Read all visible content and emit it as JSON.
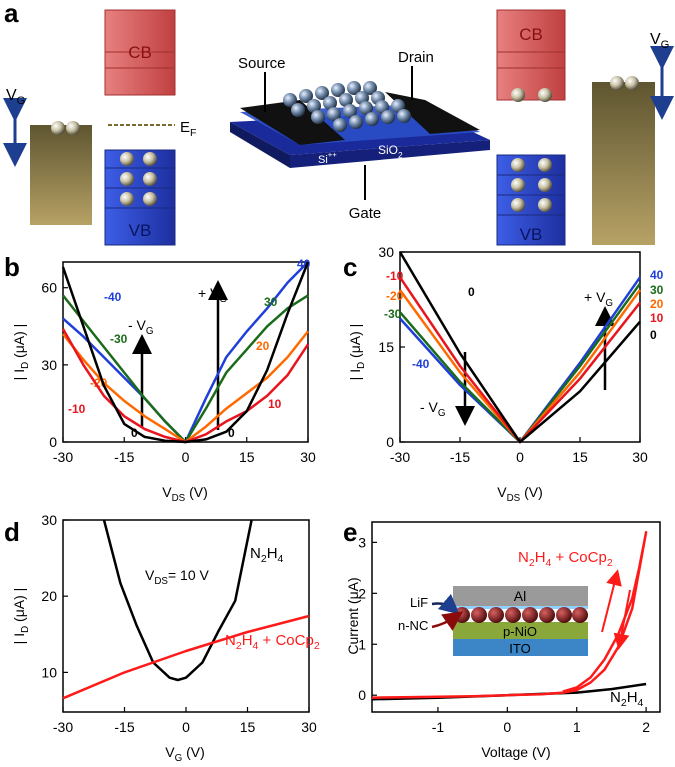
{
  "figure": {
    "panel_a": {
      "label": "a",
      "cb_left": "CB",
      "vb_left": "VB",
      "vg_left": [
        "V",
        "G"
      ],
      "ef": [
        "E",
        "F"
      ],
      "source": "Source",
      "drain": "Drain",
      "si": [
        "Si",
        "++"
      ],
      "sio2": [
        "SiO",
        "2"
      ],
      "gate": "Gate",
      "cb_right": "CB",
      "vb_right": "VB",
      "vg_right": [
        "V",
        "G"
      ]
    }
  },
  "chart_data": [
    {
      "type": "line",
      "panel": "b",
      "xlabel": [
        "V",
        "DS",
        " (V)"
      ],
      "ylabel": [
        "| I",
        "D",
        " (μA) |"
      ],
      "x": [
        -30,
        -25,
        -20,
        -15,
        -10,
        -5,
        0,
        5,
        10,
        15,
        20,
        25,
        30
      ],
      "xlim": [
        -30,
        30
      ],
      "ylim": [
        0,
        70
      ],
      "xticks": [
        -30,
        -15,
        0,
        15,
        30
      ],
      "yticks": [
        0,
        30,
        60
      ],
      "series": [
        {
          "name": "40",
          "left_name": "-40",
          "color": "#1f3fd8",
          "values": [
            48,
            41,
            33,
            25,
            17,
            8,
            0,
            17,
            33,
            43,
            52,
            62,
            70
          ]
        },
        {
          "name": "30",
          "left_name": "-30",
          "color": "#1a6b1a",
          "values": [
            57,
            47,
            37,
            27,
            17,
            8,
            0,
            13,
            27,
            36,
            45,
            52,
            57
          ]
        },
        {
          "name": "20",
          "left_name": "-20",
          "color": "#ff6a00",
          "values": [
            42,
            32,
            23,
            16,
            10,
            5,
            0,
            6,
            13,
            19,
            25,
            33,
            43
          ]
        },
        {
          "name": "10",
          "left_name": "-10",
          "color": "#e8141e",
          "values": [
            44,
            30,
            18,
            10,
            5,
            2,
            0,
            3,
            8,
            12,
            18,
            26,
            38
          ]
        },
        {
          "name": "0",
          "left_name": "0",
          "color": "#000000",
          "values": [
            68,
            45,
            22,
            7,
            2,
            0.5,
            0,
            1,
            4,
            12,
            28,
            50,
            70
          ]
        }
      ],
      "annotations": [
        [
          "+ V",
          "G"
        ],
        [
          "- V",
          "G"
        ]
      ]
    },
    {
      "type": "line",
      "panel": "c",
      "xlabel": [
        "V",
        "DS",
        " (V)"
      ],
      "ylabel": [
        "| I",
        "D",
        " (μA) |"
      ],
      "x": [
        -30,
        -15,
        0,
        15,
        30
      ],
      "xlim": [
        -30,
        30
      ],
      "ylim": [
        0,
        30
      ],
      "xticks": [
        -30,
        -15,
        0,
        15,
        30
      ],
      "yticks": [
        0,
        15,
        30
      ],
      "series": [
        {
          "name": "40",
          "left_name": "-40",
          "color": "#1f3fd8",
          "values": [
            19.5,
            9,
            0,
            12.5,
            26
          ]
        },
        {
          "name": "30",
          "left_name": "-30",
          "color": "#1a6b1a",
          "values": [
            20.5,
            9.5,
            0,
            12,
            25
          ]
        },
        {
          "name": "20",
          "left_name": "-20",
          "color": "#ff6a00",
          "values": [
            24,
            11,
            0,
            11,
            24
          ]
        },
        {
          "name": "10",
          "left_name": "-10",
          "color": "#e8141e",
          "values": [
            26,
            12,
            0,
            10,
            22
          ]
        },
        {
          "name": "0",
          "left_name": "0",
          "color": "#000000",
          "values": [
            30,
            14,
            0,
            8,
            19
          ]
        }
      ],
      "annotations": [
        [
          "+ V",
          "G"
        ],
        [
          "- V",
          "G"
        ]
      ]
    },
    {
      "type": "line",
      "panel": "d",
      "xlabel": [
        "V",
        "G",
        " (V)"
      ],
      "ylabel": [
        "| I",
        "D",
        " (μA) |"
      ],
      "xlim": [
        -30,
        30
      ],
      "ylim": [
        4.8,
        30
      ],
      "xticks": [
        -30,
        -15,
        0,
        15,
        30
      ],
      "yticks": [
        10,
        20,
        30
      ],
      "series": [
        {
          "name": [
            "N",
            "2",
            "H",
            "4"
          ],
          "color": "#000000",
          "x": [
            -20,
            -16,
            -12,
            -8,
            -4,
            -2,
            0,
            4,
            8,
            12,
            16
          ],
          "values": [
            30,
            21.7,
            16.1,
            11.3,
            9.3,
            9,
            9.3,
            11.3,
            15.5,
            19.4,
            30
          ]
        },
        {
          "name": [
            "N",
            "2",
            "H",
            "4",
            " + CoCp",
            "2"
          ],
          "color": "#ff1a1a",
          "x": [
            -30,
            -15,
            0,
            15,
            30
          ],
          "values": [
            6.6,
            10,
            12.8,
            15.3,
            17.4
          ]
        }
      ],
      "annotations": [
        [
          "V",
          "DS",
          "= 10 V"
        ]
      ]
    },
    {
      "type": "line",
      "panel": "e",
      "xlabel": "Voltage (V)",
      "ylabel": "Current (μA)",
      "xlim": [
        -1.95,
        2.2
      ],
      "ylim": [
        -0.33,
        3.4
      ],
      "xticks": [
        -1,
        0,
        1,
        2
      ],
      "yticks": [
        0,
        1,
        2,
        3
      ],
      "series": [
        {
          "name": [
            "N",
            "2",
            "H",
            "4"
          ],
          "color": "#000000",
          "x": [
            -1.95,
            -1,
            0,
            1,
            1.5,
            2
          ],
          "values": [
            -0.08,
            -0.05,
            0,
            0.05,
            0.12,
            0.22
          ]
        },
        {
          "name": [
            "N",
            "2",
            "H",
            "4",
            " + CoCp",
            "2"
          ],
          "color": "#ff1a1a",
          "x": [
            -1.95,
            -1.5,
            -1,
            -0.5,
            0,
            0.5,
            0.8,
            1,
            1.2,
            1.4,
            1.6,
            1.8,
            2,
            1.9,
            1.8,
            1.6,
            1.4,
            1.2,
            1,
            0.8
          ],
          "values": [
            -0.05,
            -0.04,
            -0.03,
            -0.02,
            0,
            0.02,
            0.05,
            0.1,
            0.25,
            0.5,
            0.95,
            1.7,
            3.2,
            2.5,
            1.9,
            1.2,
            0.7,
            0.35,
            0.15,
            0.07
          ]
        }
      ],
      "inset": {
        "al": "Al",
        "lif": "LiF",
        "nc": "n-NC",
        "nio": "p-NiO",
        "ito": "ITO"
      }
    }
  ]
}
